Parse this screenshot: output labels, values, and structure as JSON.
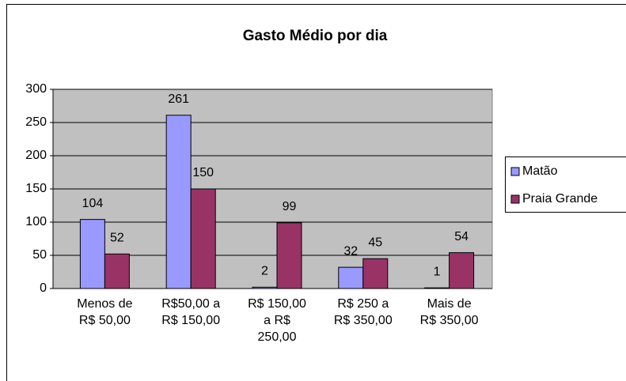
{
  "chart_data": {
    "type": "bar",
    "title": "Gasto Médio por dia",
    "categories": [
      "Menos de R$ 50,00",
      "R$50,00 a R$ 150,00",
      "R$ 150,00 a R$ 250,00",
      "R$ 250 a R$ 350,00",
      "Mais de R$ 350,00"
    ],
    "series": [
      {
        "name": "Matão",
        "color": "#9999ff",
        "values": [
          104,
          261,
          2,
          32,
          1
        ]
      },
      {
        "name": "Praia Grande",
        "color": "#993366",
        "values": [
          52,
          150,
          99,
          45,
          54
        ]
      }
    ],
    "ylim": [
      0,
      300
    ],
    "yticks": [
      0,
      50,
      100,
      150,
      200,
      250,
      300
    ],
    "grid": true,
    "legend": "right"
  }
}
